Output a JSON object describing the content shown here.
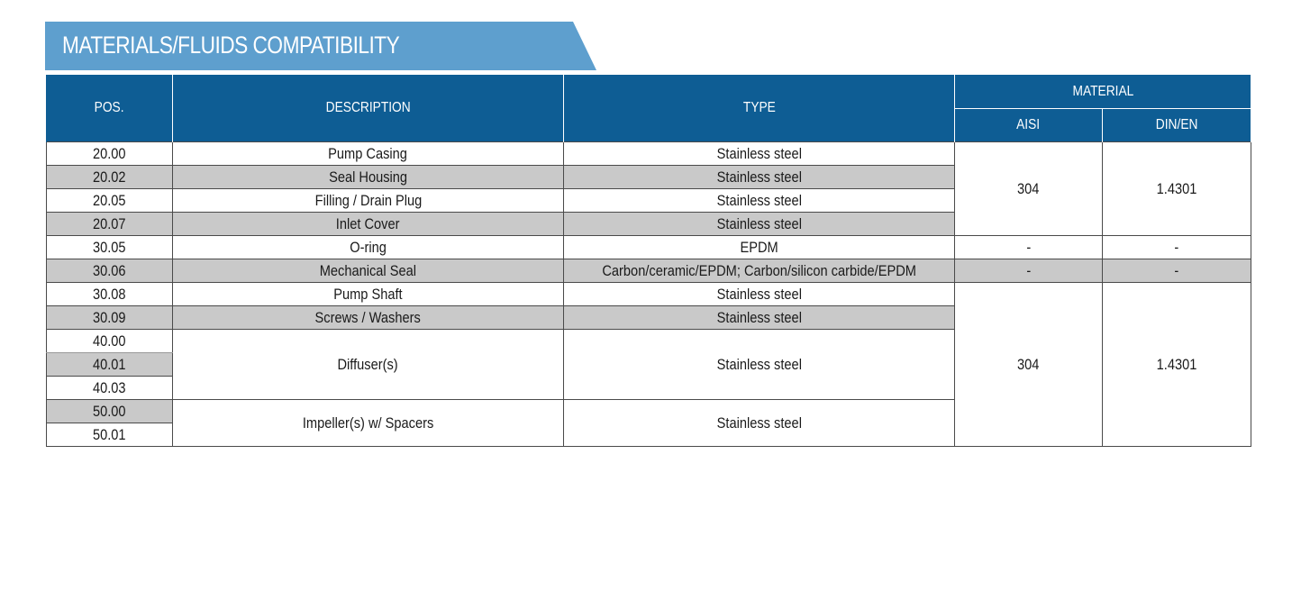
{
  "section_title": "MATERIALS/FLUIDS COMPATIBILITY",
  "headers": {
    "pos": "POS.",
    "description": "DESCRIPTION",
    "type": "TYPE",
    "material": "MATERIAL",
    "aisi": "AISI",
    "din_en": "DIN/EN"
  },
  "rows": [
    {
      "pos": "20.00",
      "description": "Pump Casing",
      "type": "Stainless steel"
    },
    {
      "pos": "20.02",
      "description": "Seal Housing",
      "type": "Stainless steel"
    },
    {
      "pos": "20.05",
      "description": "Filling / Drain Plug",
      "type": "Stainless steel"
    },
    {
      "pos": "20.07",
      "description": "Inlet Cover",
      "type": "Stainless steel"
    },
    {
      "pos": "30.05",
      "description": "O-ring",
      "type": "EPDM"
    },
    {
      "pos": "30.06",
      "description": "Mechanical Seal",
      "type": "Carbon/ceramic/EPDM; Carbon/silicon carbide/EPDM"
    },
    {
      "pos": "30.08",
      "description": "Pump Shaft",
      "type": "Stainless steel"
    },
    {
      "pos": "30.09",
      "description": "Screws / Washers",
      "type": "Stainless steel"
    },
    {
      "pos": "40.00"
    },
    {
      "pos": "40.01",
      "description": "Diffuser(s)",
      "type": "Stainless steel"
    },
    {
      "pos": "40.03"
    },
    {
      "pos": "50.00",
      "description": "Impeller(s) w/ Spacers",
      "type": "Stainless steel"
    },
    {
      "pos": "50.01"
    }
  ],
  "material_groups": [
    {
      "aisi": "304",
      "din_en": "1.4301"
    },
    {
      "aisi": "-",
      "din_en": "-"
    },
    {
      "aisi": "-",
      "din_en": "-"
    },
    {
      "aisi": "304",
      "din_en": "1.4301"
    }
  ],
  "colors": {
    "header_blue": "#0e5d94",
    "banner_blue": "#5e9fce",
    "row_shade": "#c9c9c9"
  }
}
